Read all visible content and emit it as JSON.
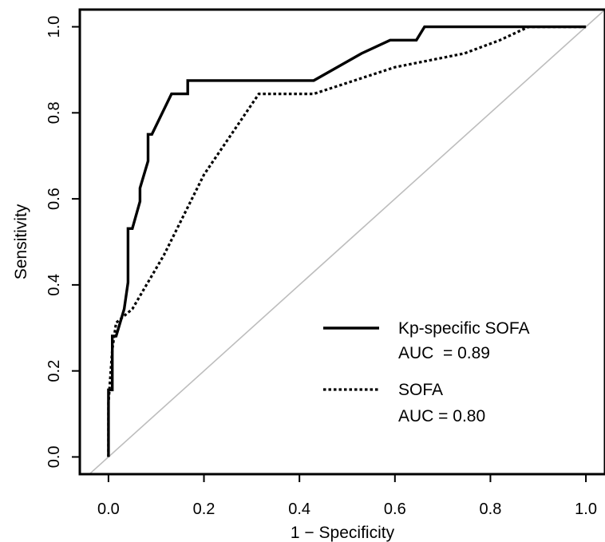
{
  "chart_data": {
    "type": "line",
    "title": "",
    "xlabel": "1 − Specificity",
    "ylabel": "Sensitivity",
    "xlim": [
      -0.06,
      1.04
    ],
    "ylim": [
      -0.04,
      1.04
    ],
    "x_ticks": [
      "0.0",
      "0.2",
      "0.4",
      "0.6",
      "0.8",
      "1.0"
    ],
    "y_ticks": [
      "0.0",
      "0.2",
      "0.4",
      "0.6",
      "0.8",
      "1.0"
    ],
    "grid": false,
    "legend_position": "bottom-right",
    "reference_line": {
      "points": [
        [
          -0.06,
          -0.06
        ],
        [
          1.04,
          1.04
        ]
      ],
      "color": "#bdbdbd"
    },
    "series": [
      {
        "name": "Kp-specific SOFA",
        "style": "solid",
        "color": "#000000",
        "auc_label": "AUC  = 0.89",
        "points": [
          [
            0.0,
            0.0
          ],
          [
            0.0,
            0.156
          ],
          [
            0.008,
            0.156
          ],
          [
            0.008,
            0.281
          ],
          [
            0.016,
            0.281
          ],
          [
            0.033,
            0.344
          ],
          [
            0.041,
            0.406
          ],
          [
            0.041,
            0.531
          ],
          [
            0.05,
            0.531
          ],
          [
            0.066,
            0.594
          ],
          [
            0.066,
            0.625
          ],
          [
            0.083,
            0.688
          ],
          [
            0.083,
            0.75
          ],
          [
            0.091,
            0.75
          ],
          [
            0.132,
            0.844
          ],
          [
            0.166,
            0.844
          ],
          [
            0.166,
            0.875
          ],
          [
            0.43,
            0.875
          ],
          [
            0.53,
            0.938
          ],
          [
            0.59,
            0.969
          ],
          [
            0.645,
            0.969
          ],
          [
            0.662,
            1.0
          ],
          [
            1.0,
            1.0
          ]
        ]
      },
      {
        "name": "SOFA",
        "style": "dotted",
        "color": "#000000",
        "auc_label": "AUC = 0.80",
        "points": [
          [
            0.0,
            0.0
          ],
          [
            0.0,
            0.125
          ],
          [
            0.008,
            0.25
          ],
          [
            0.016,
            0.312
          ],
          [
            0.05,
            0.344
          ],
          [
            0.116,
            0.469
          ],
          [
            0.2,
            0.656
          ],
          [
            0.315,
            0.844
          ],
          [
            0.43,
            0.844
          ],
          [
            0.6,
            0.906
          ],
          [
            0.745,
            0.938
          ],
          [
            0.82,
            0.969
          ],
          [
            0.88,
            1.0
          ],
          [
            1.0,
            1.0
          ]
        ]
      }
    ]
  }
}
